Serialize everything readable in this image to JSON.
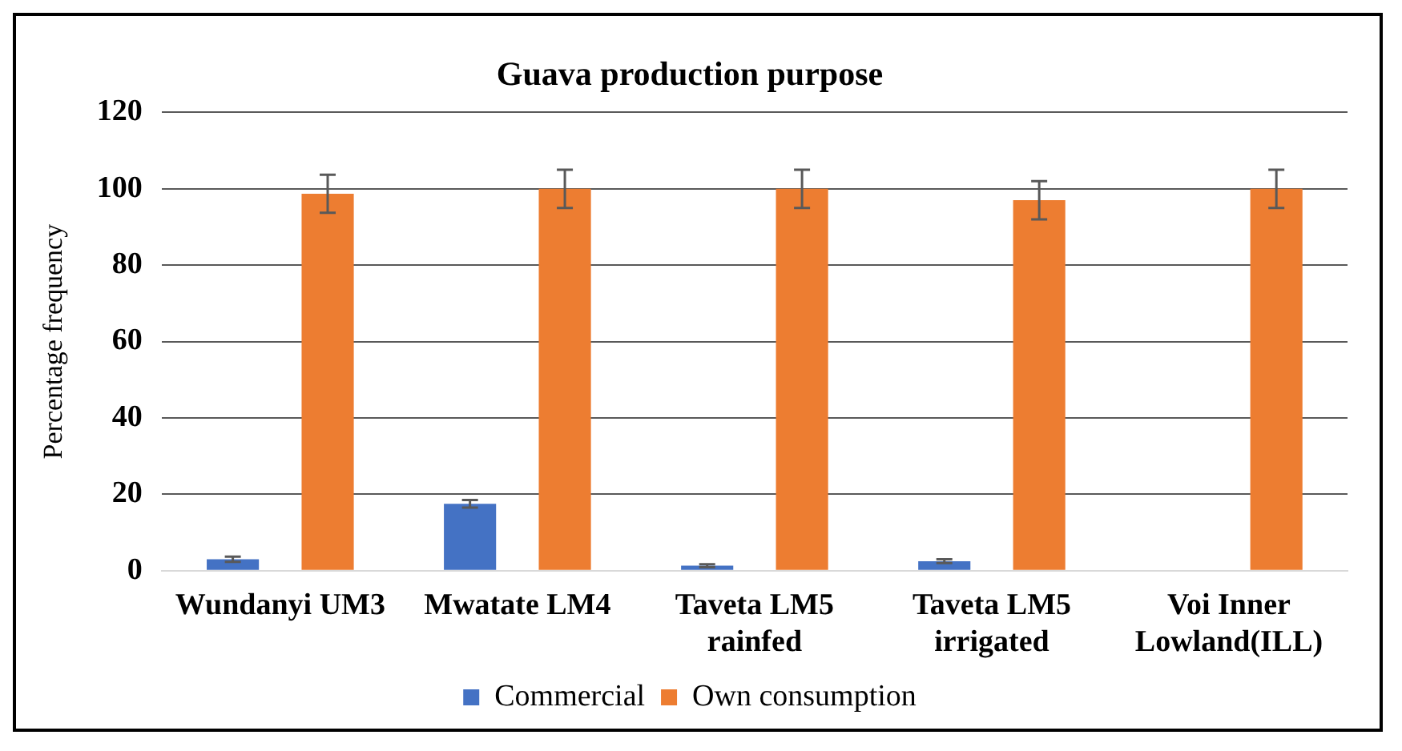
{
  "chart_data": {
    "type": "bar",
    "title": "Guava production purpose",
    "ylabel": "Percentage frequency",
    "categories": [
      "Wundanyi UM3",
      "Mwatate LM4",
      "Taveta LM5 rainfed",
      "Taveta LM5 irrigated",
      "Voi Inner Lowland(ILL)"
    ],
    "series": [
      {
        "name": "Commercial",
        "color": "#4472c4",
        "values": [
          3,
          17.5,
          1.3,
          2.5,
          0
        ],
        "errors": [
          0.7,
          1,
          0.4,
          0.5,
          null
        ]
      },
      {
        "name": "Own consumption",
        "color": "#ed7d31",
        "values": [
          98.7,
          100,
          100,
          97,
          100
        ],
        "errors": [
          5,
          5,
          5,
          5,
          5
        ]
      }
    ],
    "ylim": [
      0,
      120
    ],
    "yticks": [
      0,
      20,
      40,
      60,
      80,
      100,
      120
    ],
    "grid": "y",
    "legend": "bottom"
  }
}
